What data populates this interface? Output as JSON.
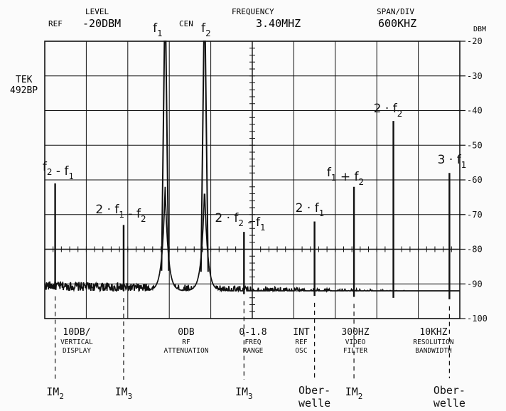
{
  "instrument": {
    "line1": "TEK",
    "line2": "492BP"
  },
  "header": {
    "ref": "REF",
    "level_label": "LEVEL",
    "level_value": "-20DBM",
    "cen": "CEN",
    "frequency_label": "FREQUENCY",
    "frequency_value": "3.40MHZ",
    "span_label": "SPAN/DIV",
    "span_value": "600KHZ"
  },
  "settings": [
    {
      "value": "10DB/",
      "line1": "VERTICAL",
      "line2": "DISPLAY"
    },
    {
      "value": "0DB",
      "line1": "RF",
      "line2": "ATTENUATION"
    },
    {
      "value": "0-1.8",
      "line1": "FREQ",
      "line2": "RANGE"
    },
    {
      "value": "INT",
      "line1": "REF",
      "line2": "OSC"
    },
    {
      "value": "300HZ",
      "line1": "VIDEO",
      "line2": "FILTER"
    },
    {
      "value": "10KHZ",
      "line1": "RESOLUTION",
      "line2": "BANDWIDTH"
    }
  ],
  "chart_data": {
    "type": "line",
    "ylabel": "DBM",
    "ylim": [
      -100,
      -20
    ],
    "yticks": [
      -20,
      -30,
      -40,
      -50,
      -60,
      -70,
      -80,
      -90,
      -100
    ],
    "xlim": [
      0,
      10
    ],
    "x_divisions": 10,
    "y_divisions": 8,
    "grid": true,
    "noise_floor_dbm": {
      "start": -90.5,
      "end": -93.5
    },
    "peaks": [
      {
        "label": "f2 - f1",
        "x": 0.25,
        "dbm": -61
      },
      {
        "label": "2 · f1 - f2",
        "x": 1.9,
        "dbm": -73
      },
      {
        "label": "f1",
        "x": 2.9,
        "dbm": -20
      },
      {
        "label": "f2",
        "x": 3.85,
        "dbm": -20
      },
      {
        "label": "2 · f2 - f1",
        "x": 4.8,
        "dbm": -75
      },
      {
        "label": "2 · f1",
        "x": 6.5,
        "dbm": -72
      },
      {
        "label": "f1 + f2",
        "x": 7.45,
        "dbm": -62
      },
      {
        "label": "2 · f2",
        "x": 8.4,
        "dbm": -43
      },
      {
        "label": "3 · f1",
        "x": 9.75,
        "dbm": -58
      }
    ],
    "annotations": [
      {
        "x": 0.25,
        "main": "IM",
        "sub": "2"
      },
      {
        "x": 1.9,
        "main": "IM",
        "sub": "3"
      },
      {
        "x": 4.8,
        "main": "IM",
        "sub": "3"
      },
      {
        "x": 6.5,
        "main": "Ober-",
        "line2": "welle"
      },
      {
        "x": 7.45,
        "main": "IM",
        "sub": "2"
      },
      {
        "x": 9.75,
        "main": "Ober-",
        "line2": "welle"
      }
    ]
  }
}
